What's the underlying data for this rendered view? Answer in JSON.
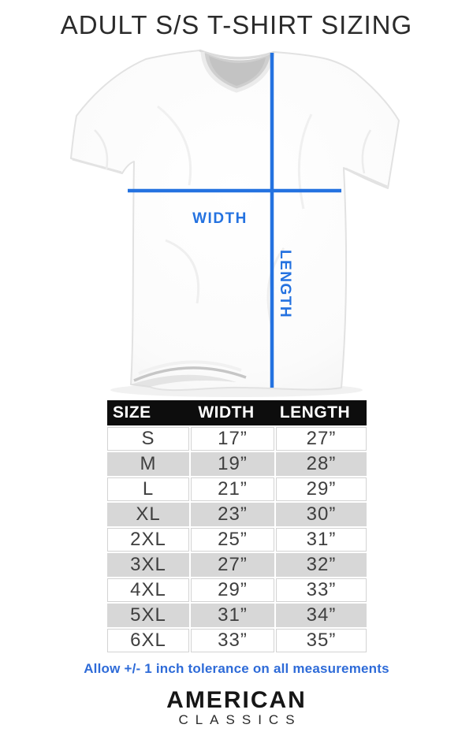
{
  "title": "ADULT S/S T-SHIRT SIZING",
  "diagram": {
    "width_label": "WIDTH",
    "length_label": "LENGTH"
  },
  "size_table": {
    "columns": [
      "SIZE",
      "WIDTH",
      "LENGTH"
    ],
    "rows": [
      {
        "size": "S",
        "width": "17”",
        "length": "27”"
      },
      {
        "size": "M",
        "width": "19”",
        "length": "28”"
      },
      {
        "size": "L",
        "width": "21”",
        "length": "29”"
      },
      {
        "size": "XL",
        "width": "23”",
        "length": "30”"
      },
      {
        "size": "2XL",
        "width": "25”",
        "length": "31”"
      },
      {
        "size": "3XL",
        "width": "27”",
        "length": "32”"
      },
      {
        "size": "4XL",
        "width": "29”",
        "length": "33”"
      },
      {
        "size": "5XL",
        "width": "31”",
        "length": "34”"
      },
      {
        "size": "6XL",
        "width": "33”",
        "length": "35”"
      }
    ]
  },
  "note": "Allow +/- 1 inch tolerance on all measurements",
  "brand": {
    "line1": "AMERICAN",
    "line2": "CLASSICS"
  },
  "colors": {
    "accent_blue": "#2472e0",
    "note_blue": "#2e6bd8",
    "header_bg": "#0d0d0d",
    "row_gray": "#d7d7d7"
  }
}
